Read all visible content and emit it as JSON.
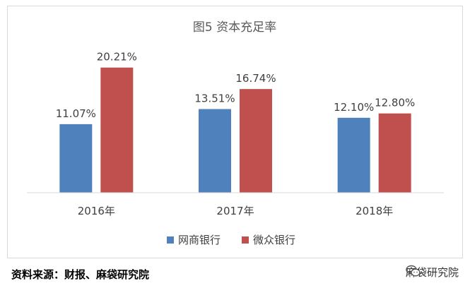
{
  "chart_data": {
    "type": "bar",
    "title": "图5 资本充足率",
    "categories": [
      "2016年",
      "2017年",
      "2018年"
    ],
    "series": [
      {
        "name": "网商银行",
        "values": [
          11.07,
          13.51,
          12.1
        ],
        "labels": [
          "11.07%",
          "13.51%",
          "12.10%"
        ],
        "color": "#4f81bd"
      },
      {
        "name": "微众银行",
        "values": [
          20.21,
          16.74,
          12.8
        ],
        "labels": [
          "20.21%",
          "16.74%",
          "12.80%"
        ],
        "color": "#c0504d"
      }
    ],
    "ylim": [
      0,
      22
    ],
    "grid": false,
    "legend": "bottom"
  },
  "footer": {
    "source": "资料来源：财报、麻袋研究院"
  },
  "watermark": {
    "text": "麻袋研究院",
    "icon": "wechat-icon"
  }
}
